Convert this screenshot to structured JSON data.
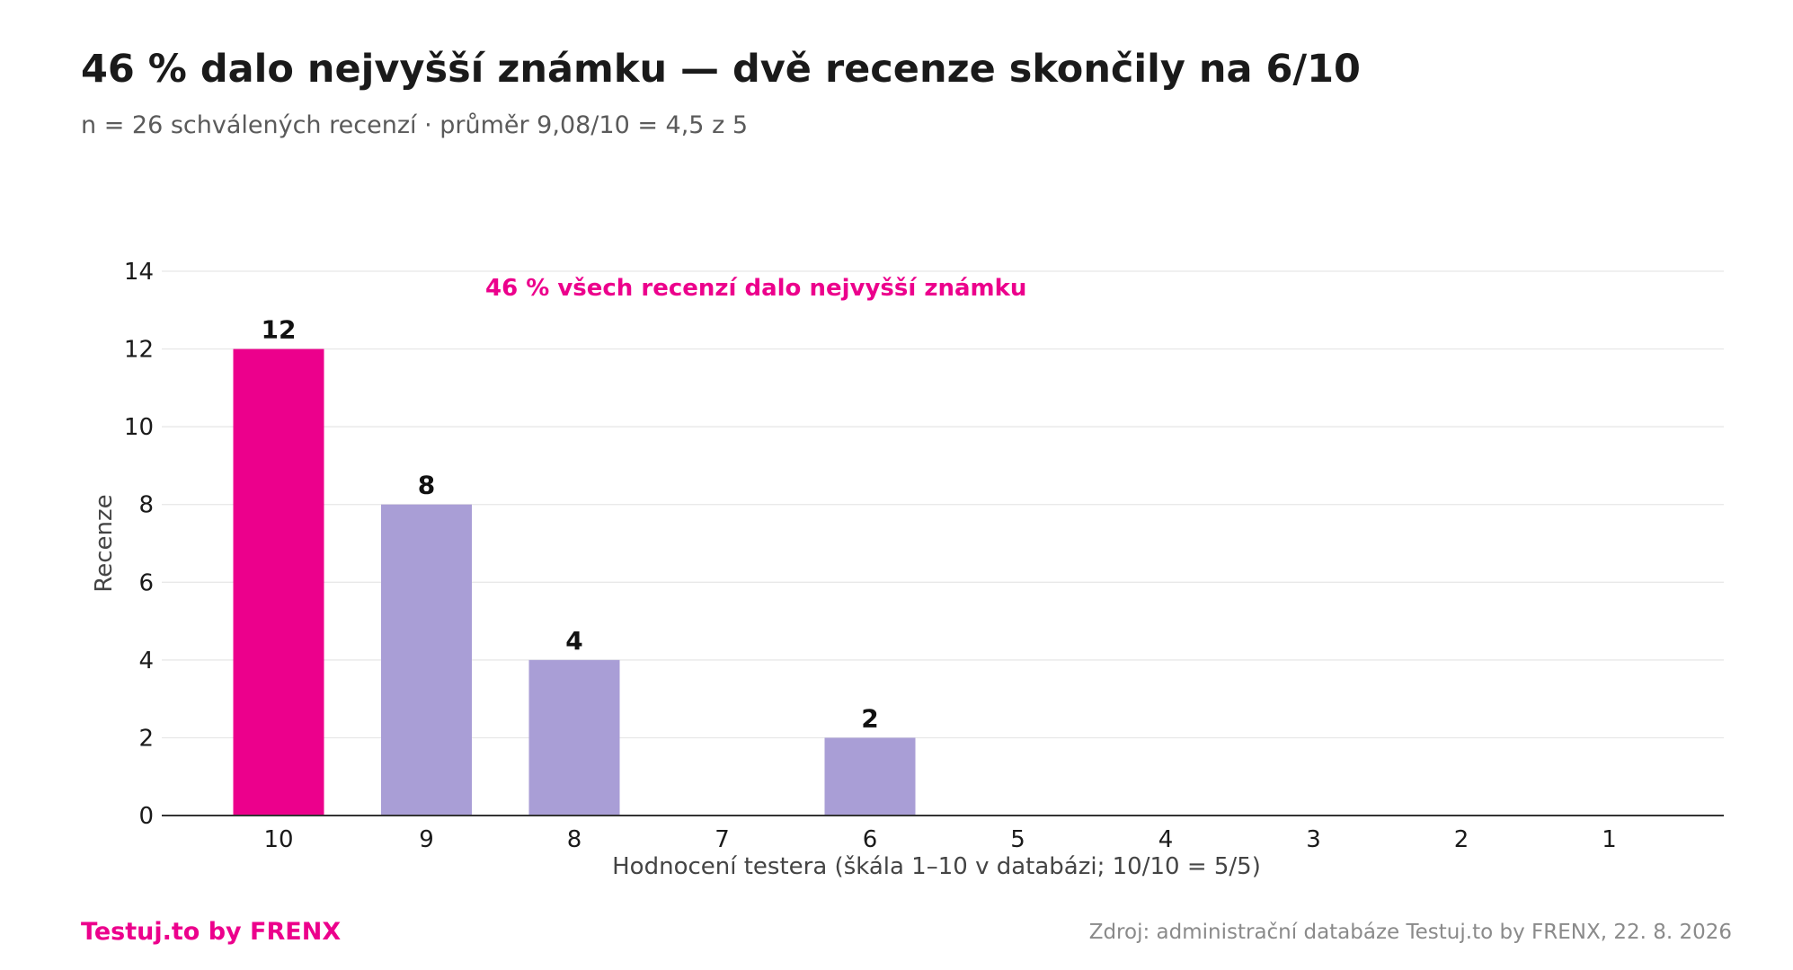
{
  "title": "46 % dalo nejvyšší známku — dvě recenze skončily na 6/10",
  "subtitle": "n = 26 schválených recenzí · průměr 9,08/10 = 4,5 z 5",
  "brand": "Testuj.to by FRENX",
  "source": "Zdroj: administrační databáze Testuj.to by FRENX, 22. 8. 2026",
  "colors": {
    "highlight": "#ec008c",
    "bar": "#a99ed6",
    "grid": "#e6e6e6",
    "axis": "#333333",
    "annotation": "#ec008c"
  },
  "chart_data": {
    "type": "bar",
    "categories": [
      "10",
      "9",
      "8",
      "7",
      "6",
      "5",
      "4",
      "3",
      "2",
      "1"
    ],
    "values": [
      12,
      8,
      4,
      0,
      2,
      0,
      0,
      0,
      0,
      0
    ],
    "data_labels": [
      "12",
      "8",
      "4",
      "",
      "2",
      "",
      "",
      "",
      "",
      ""
    ],
    "highlight_category": "10",
    "xlabel": "Hodnocení testera (škála 1–10 v databázi; 10/10 = 5/5)",
    "ylabel": "Recenze",
    "ylim": [
      0,
      14
    ],
    "yticks": [
      0,
      2,
      4,
      6,
      8,
      10,
      12,
      14
    ],
    "grid": true,
    "annotation": "46 % všech recenzí dalo nejvyšší známku"
  }
}
